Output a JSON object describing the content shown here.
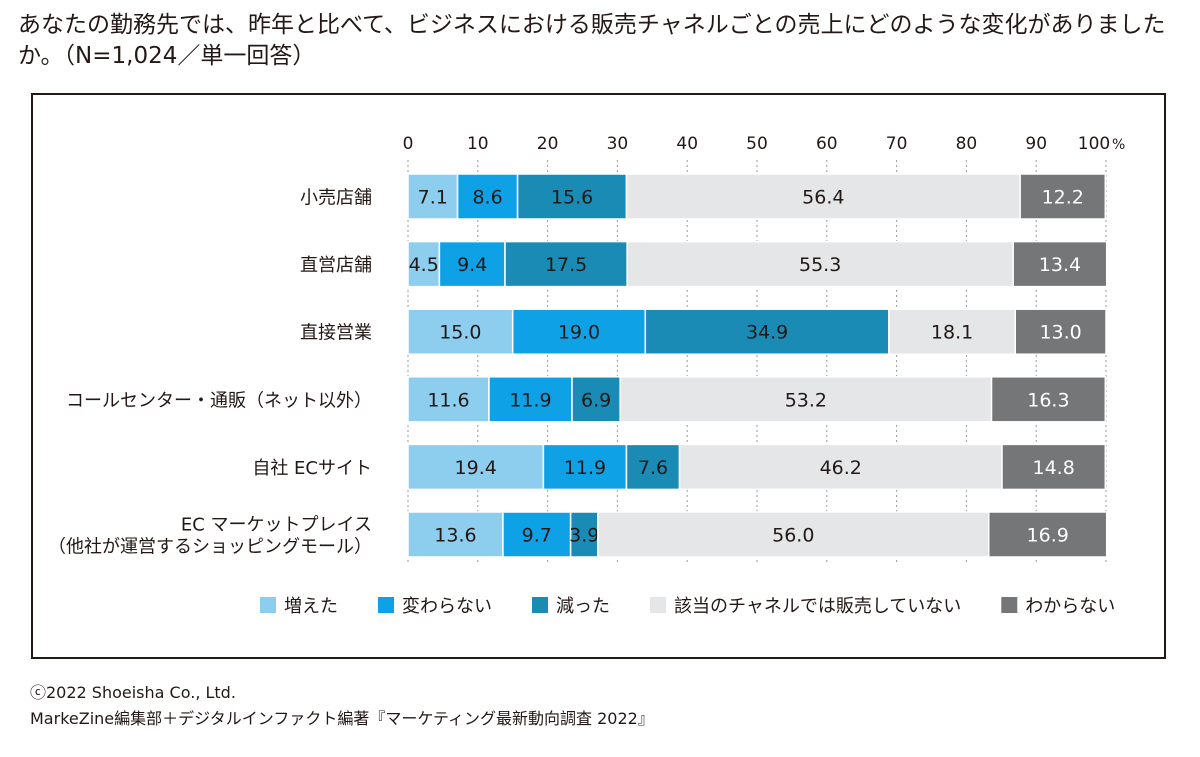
{
  "title": "あなたの勤務先では、昨年と比べて、ビジネスにおける販売チャネルごとの売上にどのような変化がありましたか。（N=1,024／単一回答）",
  "chart_data": {
    "type": "bar",
    "orientation": "horizontal",
    "stacked": true,
    "xlim": [
      0,
      100
    ],
    "x_ticks": [
      "0",
      "10",
      "20",
      "30",
      "40",
      "50",
      "60",
      "70",
      "80",
      "90",
      "100"
    ],
    "x_unit": "%",
    "grid": true,
    "legend_position": "bottom",
    "categories": [
      [
        "小売店舗"
      ],
      [
        "直営店舗"
      ],
      [
        "直接営業"
      ],
      [
        "コールセンター・通販（ネット以外）"
      ],
      [
        "自社 ECサイト"
      ],
      [
        "EC マーケットプレイス",
        "（他社が運営するショッピングモール）"
      ]
    ],
    "series": [
      {
        "name": "増えた",
        "color": "#8dcdee",
        "text_color": "#231815",
        "values": [
          7.1,
          4.5,
          15.0,
          11.6,
          19.4,
          13.6
        ],
        "labels": [
          "7.1",
          "4.5",
          "15.0",
          "11.6",
          "19.4",
          "13.6"
        ]
      },
      {
        "name": "変わらない",
        "color": "#0ea1e6",
        "text_color": "#231815",
        "values": [
          8.6,
          9.4,
          19.0,
          11.9,
          11.9,
          9.7
        ],
        "labels": [
          "8.6",
          "9.4",
          "19.0",
          "11.9",
          "11.9",
          "9.7"
        ]
      },
      {
        "name": "減った",
        "color": "#1a8bb5",
        "text_color": "#231815",
        "values": [
          15.6,
          17.5,
          34.9,
          6.9,
          7.6,
          3.9
        ],
        "labels": [
          "15.6",
          "17.5",
          "34.9",
          "6.9",
          "7.6",
          "3.9"
        ]
      },
      {
        "name": "該当のチャネルでは販売していない",
        "color": "#e4e6e8",
        "text_color": "#231815",
        "values": [
          56.4,
          55.3,
          18.1,
          53.2,
          46.2,
          56.0
        ],
        "labels": [
          "56.4",
          "55.3",
          "18.1",
          "53.2",
          "46.2",
          "56.0"
        ]
      },
      {
        "name": "わからない",
        "color": "#757677",
        "text_color": "#ffffff",
        "values": [
          12.2,
          13.4,
          13.0,
          16.3,
          14.8,
          16.9
        ],
        "labels": [
          "12.2",
          "13.4",
          "13.0",
          "16.3",
          "14.8",
          "16.9"
        ]
      }
    ]
  },
  "credits": {
    "copyright": "ⓒ2022 Shoeisha Co., Ltd.",
    "source": "MarkeZine編集部＋デジタルインファクト編著『マーケティング最新動向調査 2022』"
  }
}
